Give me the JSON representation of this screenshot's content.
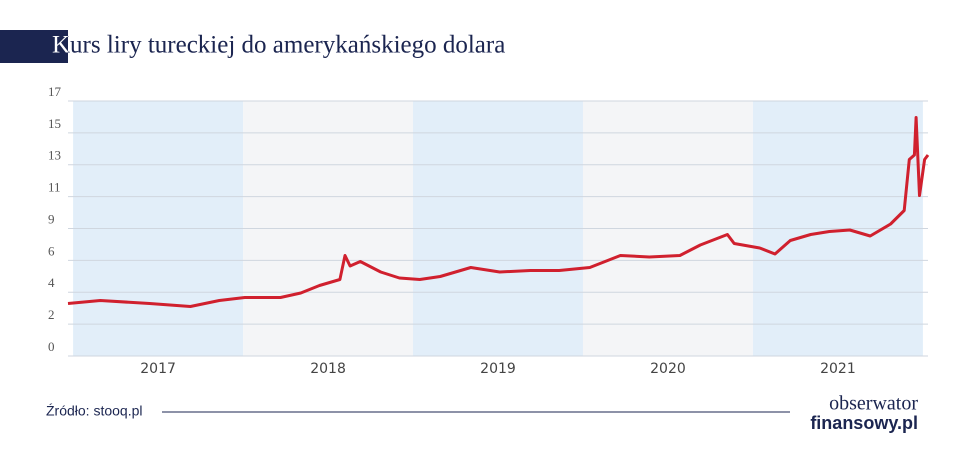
{
  "chart_data": {
    "type": "line",
    "title": "Kurs liry tureckiej do amerykańskiego dolara",
    "x_bands": [
      2017,
      2018,
      2019,
      2020,
      2021
    ],
    "x": [
      2016.97,
      2017.16,
      2017.45,
      2017.69,
      2017.86,
      2018.01,
      2018.22,
      2018.34,
      2018.45,
      2018.57,
      2018.6,
      2018.63,
      2018.69,
      2018.81,
      2018.92,
      2019.04,
      2019.16,
      2019.34,
      2019.51,
      2019.69,
      2019.86,
      2020.04,
      2020.22,
      2020.39,
      2020.57,
      2020.69,
      2020.85,
      2020.89,
      2021.04,
      2021.13,
      2021.22,
      2021.34,
      2021.45,
      2021.57,
      2021.69,
      2021.81,
      2021.89,
      2021.92,
      2021.95,
      2021.96,
      2021.98,
      2022.01,
      2022.03
    ],
    "series": [
      {
        "color": "#d0202e",
        "values": [
          3.5,
          3.7,
          3.5,
          3.3,
          3.7,
          3.9,
          3.9,
          4.2,
          4.7,
          5.1,
          6.7,
          6.0,
          6.3,
          5.6,
          5.2,
          5.1,
          5.3,
          5.9,
          5.6,
          5.7,
          5.7,
          5.9,
          6.7,
          6.6,
          6.7,
          7.4,
          8.1,
          7.5,
          7.2,
          6.8,
          7.7,
          8.1,
          8.3,
          8.4,
          8.0,
          8.8,
          9.7,
          13.1,
          13.4,
          15.9,
          10.7,
          13.1,
          13.4
        ]
      }
    ],
    "xlim": [
      2016.97,
      2022.03
    ],
    "ylim": [
      0,
      17
    ],
    "yticks": [
      0,
      {
        "value": 2.125,
        "label": "2"
      },
      {
        "value": 4.25,
        "label": "4"
      },
      {
        "value": 6.375,
        "label": "6"
      },
      {
        "value": 8.5,
        "label": "9"
      },
      {
        "value": 10.625,
        "label": "11"
      },
      {
        "value": 12.75,
        "label": "13"
      },
      {
        "value": 14.875,
        "label": "15"
      },
      17
    ],
    "grid": true,
    "band_colors": [
      "#e2eef9",
      "#f4f5f7"
    ],
    "source": "Źródło: stooq.pl",
    "logo": [
      "obserwator",
      "finansowy.pl"
    ]
  }
}
